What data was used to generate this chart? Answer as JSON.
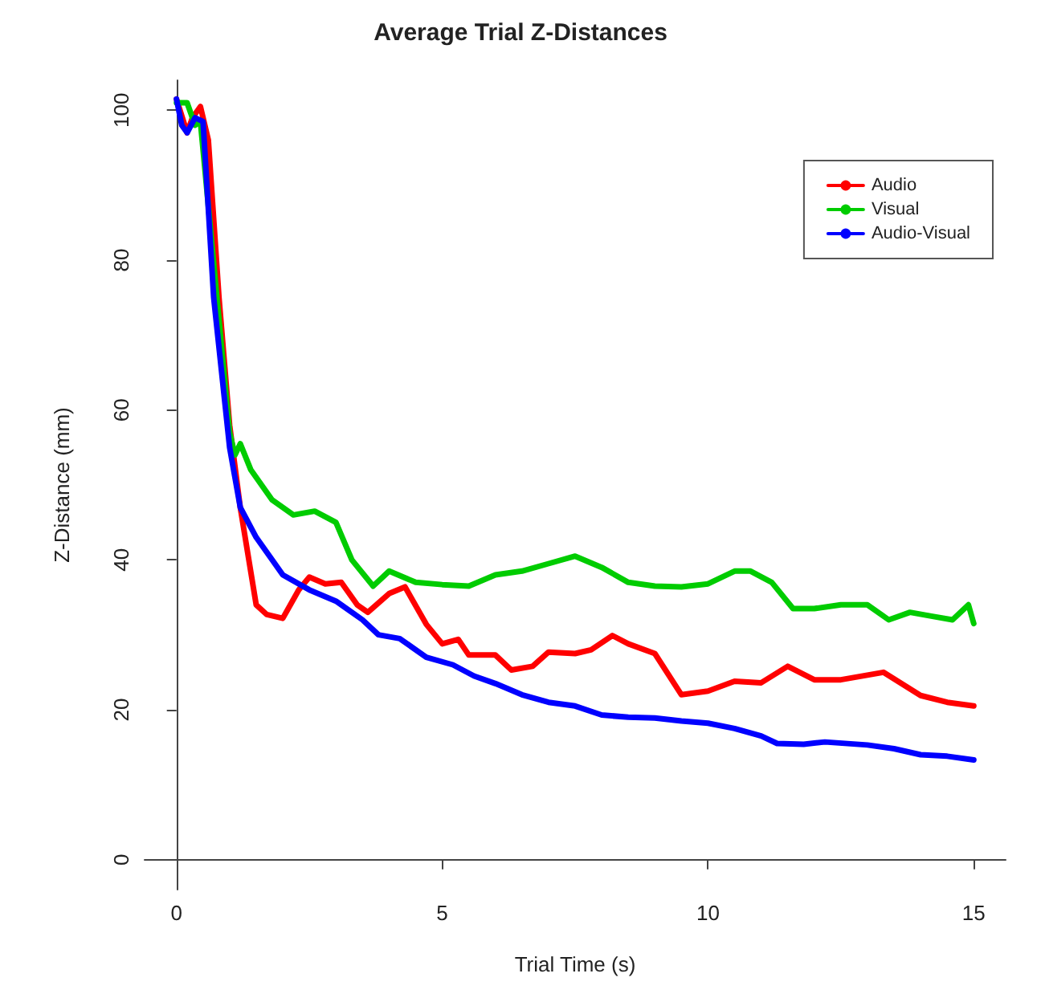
{
  "chart_data": {
    "type": "line",
    "title": "Average Trial Z-Distances",
    "xlabel": "Trial Time (s)",
    "ylabel": "Z-Distance (mm)",
    "xlim": [
      -0.6,
      15.6
    ],
    "xticks": [
      0,
      5,
      10,
      15
    ],
    "ylim": [
      -4,
      104
    ],
    "yticks": [
      0,
      20,
      40,
      60,
      80,
      100
    ],
    "grid": false,
    "legend": "top right",
    "marker": "none",
    "line_style": "solid",
    "series": [
      {
        "name": "Audio",
        "color": "#ff0000",
        "x": [
          0,
          0.2,
          0.3,
          0.45,
          0.6,
          0.8,
          1.0,
          1.2,
          1.5,
          1.7,
          2.0,
          2.3,
          2.5,
          2.8,
          3.1,
          3.4,
          3.6,
          4.0,
          4.3,
          4.7,
          5.0,
          5.3,
          5.5,
          6.0,
          6.3,
          6.7,
          7.0,
          7.5,
          7.8,
          8.2,
          8.5,
          9.0,
          9.5,
          10.0,
          10.5,
          11.0,
          11.5,
          12.0,
          12.5,
          13.3,
          14.0,
          14.5,
          15.0
        ],
        "values": [
          101.5,
          97,
          99,
          100.5,
          96,
          75,
          58,
          47,
          34,
          32.7,
          32.2,
          36,
          37.7,
          36.8,
          37,
          34,
          33,
          35.5,
          36.4,
          31.4,
          28.8,
          29.4,
          27.3,
          27.3,
          25.3,
          25.8,
          27.7,
          27.5,
          28,
          29.9,
          28.8,
          27.5,
          22,
          22.5,
          23.8,
          23.6,
          25.8,
          24,
          24,
          25,
          21.9,
          21,
          20.5
        ]
      },
      {
        "name": "Visual",
        "color": "#00cc00",
        "x": [
          0,
          0.2,
          0.35,
          0.45,
          1.0,
          1.1,
          1.2,
          1.4,
          1.8,
          2.2,
          2.6,
          3.0,
          3.3,
          3.7,
          4.0,
          4.5,
          5.0,
          5.5,
          6.0,
          6.5,
          7.0,
          7.5,
          8.0,
          8.5,
          9.0,
          9.5,
          10.0,
          10.5,
          10.8,
          11.2,
          11.6,
          12.0,
          12.5,
          13.0,
          13.4,
          13.8,
          14.2,
          14.6,
          14.9,
          15.0
        ],
        "values": [
          101,
          101,
          98,
          98.5,
          57,
          54,
          55.5,
          52,
          48,
          46,
          46.5,
          45,
          40,
          36.5,
          38.5,
          37,
          36.7,
          36.5,
          38,
          38.5,
          39.5,
          40.5,
          39,
          37,
          36.5,
          36.4,
          36.8,
          38.5,
          38.5,
          37,
          33.5,
          33.5,
          34,
          34,
          32,
          33,
          32.5,
          32,
          34,
          31.5
        ]
      },
      {
        "name": "Audio-Visual",
        "color": "#0000ff",
        "x": [
          0,
          0.1,
          0.2,
          0.35,
          0.5,
          0.7,
          1.0,
          1.2,
          1.5,
          1.8,
          2.0,
          2.5,
          3.0,
          3.5,
          3.8,
          4.2,
          4.7,
          5.2,
          5.6,
          6.0,
          6.5,
          7.0,
          7.5,
          8.0,
          8.5,
          9.0,
          9.5,
          10.0,
          10.5,
          11.0,
          11.3,
          11.8,
          12.2,
          13.0,
          13.5,
          14.0,
          14.5,
          15.0
        ],
        "values": [
          101.5,
          98,
          97,
          99,
          98.5,
          75,
          55,
          47,
          43,
          40,
          38,
          36,
          34.5,
          32,
          30,
          29.5,
          27,
          26,
          24.5,
          23.5,
          22,
          21,
          20.5,
          19.3,
          19,
          18.9,
          18.5,
          18.2,
          17.5,
          16.5,
          15.5,
          15.4,
          15.7,
          15.3,
          14.8,
          14,
          13.8,
          13.3
        ]
      }
    ]
  }
}
